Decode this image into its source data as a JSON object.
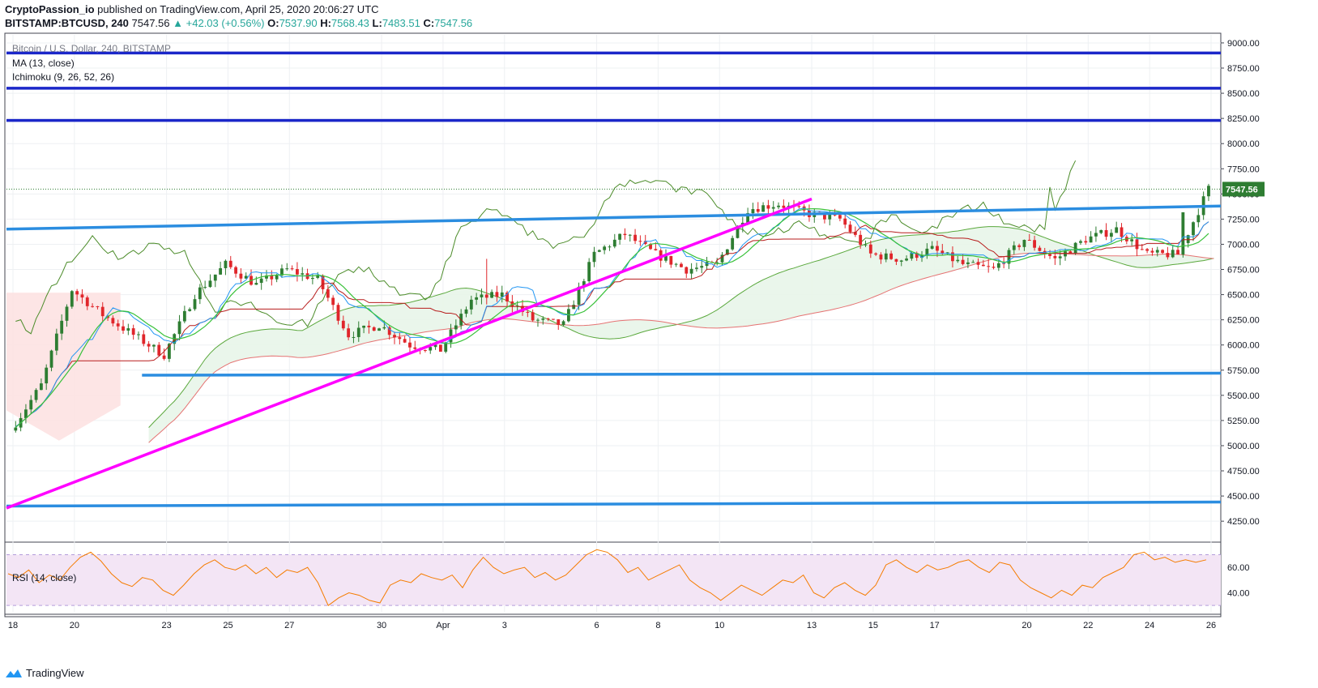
{
  "header": {
    "publisher": "CryptoPassion_io",
    "published_text": "published on TradingView.com, April 25, 2020 20:06:27 UTC",
    "symbol": "BITSTAMP:BTCUSD, 240",
    "last": "7547.56",
    "change": "+42.03 (+0.56%)",
    "o_label": "O:",
    "o_value": "7537.90",
    "h_label": "H:",
    "h_value": "7568.43",
    "l_label": "L:",
    "l_value": "7483.51",
    "c_label": "C:",
    "c_value": "7547.56"
  },
  "indicators": {
    "title_partial": "Bitcoin / U.S. Dollar, 240, BITSTAMP",
    "ma": "MA (13, close)",
    "ichimoku": "Ichimoku (9, 26, 52, 26)",
    "rsi": "RSI (14, close)"
  },
  "footer": {
    "brand": "TradingView"
  },
  "colors": {
    "up": "#2e7d32",
    "down": "#e0262b",
    "hline": "#1b27c9",
    "trend": "#2b8de0",
    "support_trend": "#ff00ff",
    "ma": "#39c13a",
    "tenkan": "#2196f3",
    "kijun": "#b71c1c",
    "lagging": "#4c8c2a",
    "rsi": "#f57c00",
    "rsi_band": "#f3e5f5"
  },
  "chart_data": [
    {
      "type": "candlestick",
      "title": "Bitcoin / U.S. Dollar, 240, BITSTAMP",
      "last_price_label": "7547.56",
      "x_tick_labels": [
        "18",
        "20",
        "23",
        "25",
        "27",
        "30",
        "Apr",
        "3",
        "6",
        "8",
        "10",
        "13",
        "15",
        "17",
        "20",
        "22",
        "24",
        "26"
      ],
      "y_ticks": [
        4250,
        4500,
        4750,
        5000,
        5250,
        5500,
        5750,
        6000,
        6250,
        6500,
        6750,
        7000,
        7250,
        7500,
        7750,
        8000,
        8250,
        8500,
        8750,
        9000
      ],
      "y_tick_labels": [
        "4250.00",
        "4500.00",
        "4750.00",
        "5000.00",
        "5250.00",
        "5500.00",
        "5750.00",
        "6000.00",
        "6250.00",
        "6500.00",
        "6750.00",
        "7000.00",
        "7250.00",
        "7500.00",
        "7750.00",
        "8000.00",
        "8250.00",
        "8500.00",
        "8750.00",
        "9000.00"
      ],
      "ylim": [
        4050,
        9080
      ],
      "horizontal_levels": [
        8900,
        8550,
        8230
      ],
      "trendlines": [
        {
          "name": "upper-channel",
          "from": [
            "18",
            7150
          ],
          "to": [
            "26",
            7380
          ]
        },
        {
          "name": "support-5700",
          "from": [
            "22",
            5700
          ],
          "to": [
            "26",
            5720
          ]
        },
        {
          "name": "lower-support",
          "from": [
            "18",
            4400
          ],
          "to": [
            "26",
            4440
          ]
        },
        {
          "name": "rising-support",
          "from": [
            "18",
            4380
          ],
          "to": [
            "13",
            7450
          ]
        }
      ],
      "close_anchor_days": [
        0,
        1,
        2,
        3,
        4,
        5,
        6,
        7,
        8,
        9,
        10,
        11,
        12,
        13,
        14,
        15,
        16,
        17,
        18,
        19,
        20,
        21,
        22,
        23,
        24,
        25,
        26,
        27,
        28,
        29,
        30,
        31,
        32,
        33,
        34,
        35,
        36,
        37,
        38,
        39
      ],
      "close_anchors": [
        5150,
        5600,
        6550,
        6300,
        6100,
        5900,
        6500,
        6800,
        6600,
        6750,
        6650,
        6100,
        6200,
        6000,
        5950,
        6450,
        6500,
        6250,
        6200,
        6900,
        7100,
        6900,
        6750,
        6800,
        7350,
        7400,
        7300,
        7250,
        6900,
        6850,
        6950,
        6800,
        6750,
        7050,
        6850,
        7050,
        7150,
        6900,
        6900,
        7550
      ],
      "series": [
        {
          "name": "MA (13, close)"
        },
        {
          "name": "Ichimoku (9, 26, 52, 26)"
        }
      ]
    },
    {
      "type": "line",
      "title": "RSI (14, close)",
      "y_tick_labels": [
        "60.00",
        "40.00"
      ],
      "y_ticks": [
        60,
        40
      ],
      "bands": [
        70,
        30
      ],
      "ylim": [
        25,
        78
      ],
      "values": [
        55,
        52,
        58,
        48,
        54,
        50,
        60,
        68,
        72,
        65,
        55,
        48,
        45,
        52,
        50,
        42,
        38,
        46,
        55,
        62,
        66,
        60,
        58,
        62,
        55,
        60,
        52,
        58,
        56,
        60,
        48,
        30,
        36,
        40,
        38,
        34,
        32,
        46,
        50,
        48,
        55,
        52,
        50,
        54,
        44,
        58,
        68,
        60,
        55,
        58,
        60,
        52,
        56,
        50,
        54,
        62,
        70,
        74,
        72,
        66,
        56,
        60,
        50,
        54,
        58,
        62,
        50,
        44,
        40,
        34,
        40,
        46,
        42,
        38,
        44,
        50,
        48,
        54,
        40,
        36,
        44,
        48,
        42,
        38,
        46,
        62,
        66,
        60,
        56,
        62,
        58,
        60,
        64,
        66,
        60,
        56,
        64,
        62,
        50,
        44,
        40,
        36,
        42,
        38,
        46,
        44,
        52,
        56,
        60,
        70,
        72,
        66,
        68,
        64,
        66,
        64,
        66
      ]
    }
  ]
}
